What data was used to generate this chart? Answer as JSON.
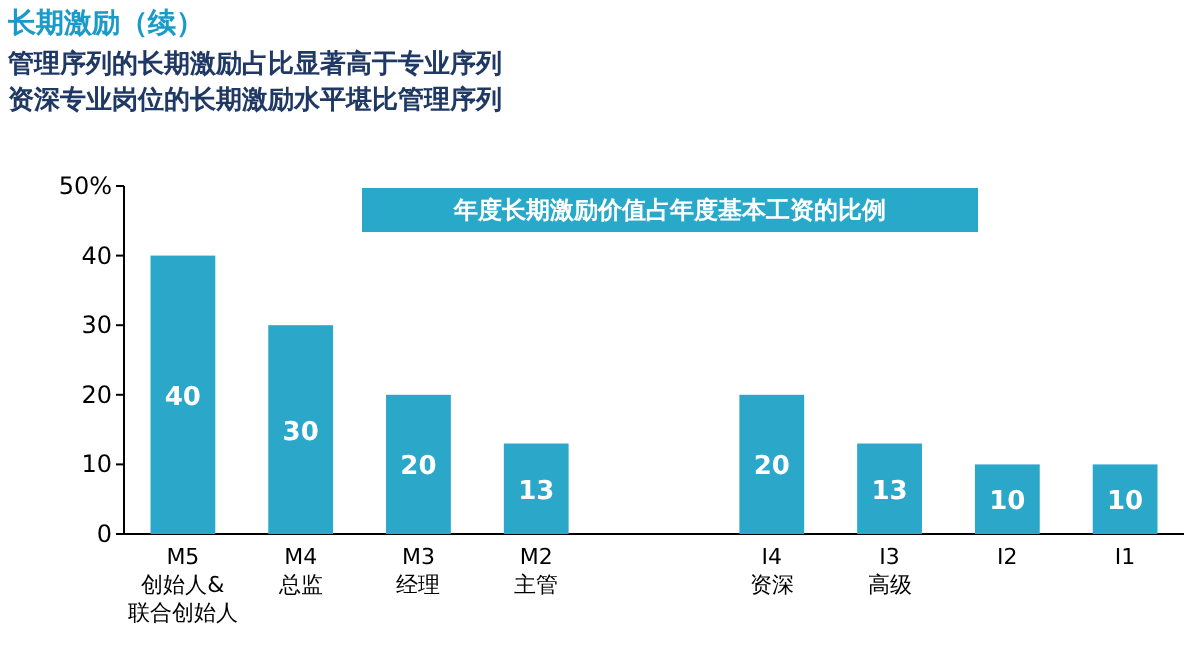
{
  "chart_data": {
    "type": "bar",
    "title": "长期激励（续）",
    "subtitle": [
      "管理序列的长期激励占比显著高于专业序列",
      "资深专业岗位的长期激励水平堪比管理序列"
    ],
    "annotations": [
      "年度长期激励价值占年度基本工资的比例"
    ],
    "categories": [
      "M5\n创始人&\n联合创始人",
      "M4\n总监",
      "M3\n经理",
      "M2\n主管",
      null,
      "I4\n资深",
      "I3\n高级",
      "I2",
      "I1"
    ],
    "values": [
      40,
      30,
      20,
      13,
      null,
      20,
      13,
      10,
      10
    ],
    "color": "#2aa7c9",
    "ylim": [
      0,
      50
    ],
    "yticks": [
      0,
      10,
      20,
      30,
      40,
      {
        "value": 50,
        "label": "50%"
      }
    ],
    "data_labels": true
  }
}
